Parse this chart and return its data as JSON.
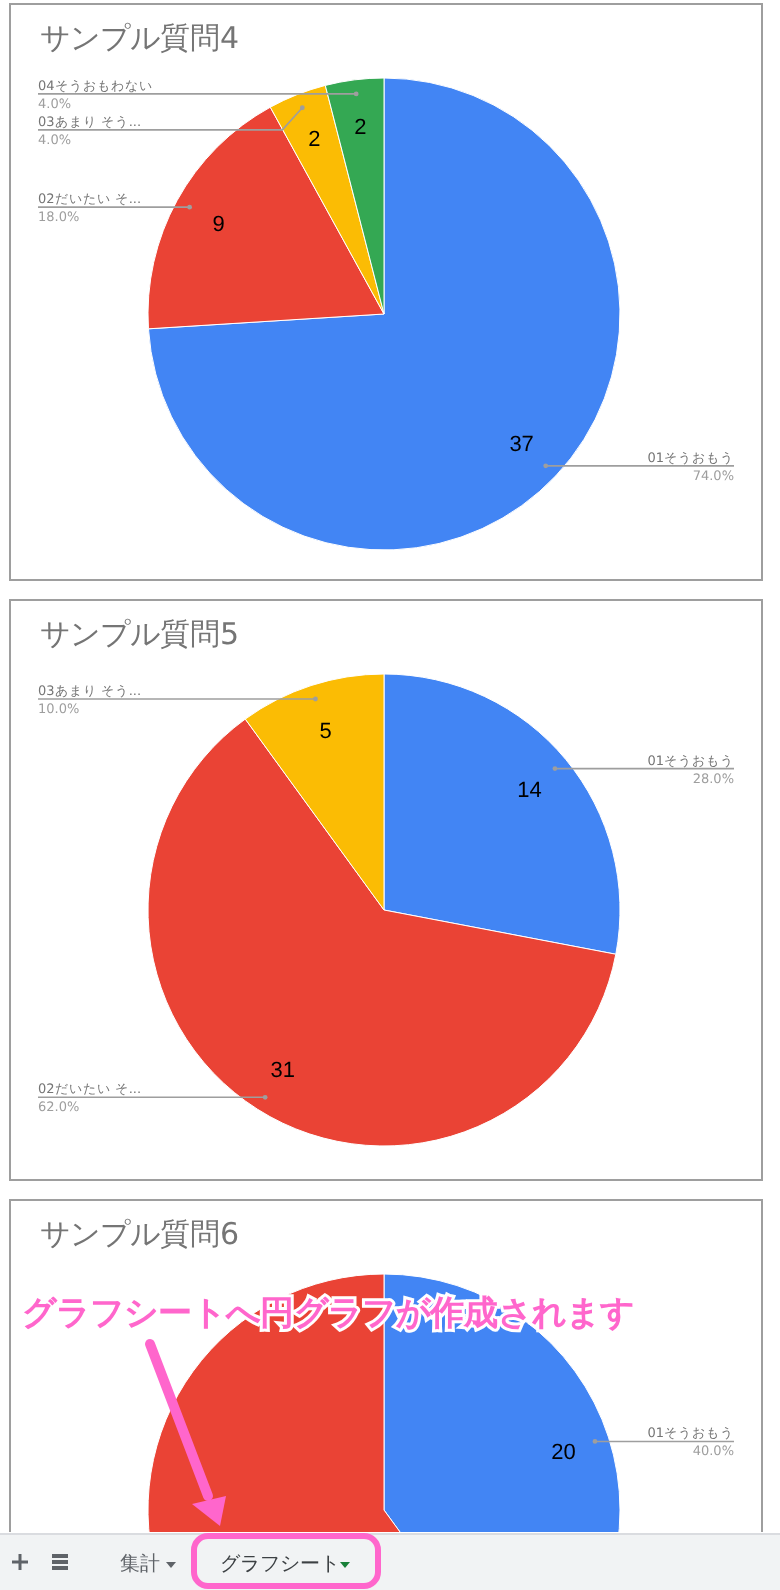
{
  "chart_data": [
    {
      "type": "pie",
      "title": "サンプル質問4",
      "categories": [
        "01そうおもう",
        "02だいたい そ...",
        "03あまり そう...",
        "04そうおもわない"
      ],
      "values": [
        37,
        9,
        2,
        2
      ],
      "colors": [
        "#4285f4",
        "#ea4335",
        "#fbbc04",
        "#34a853"
      ],
      "data_labels": true,
      "annotations": [
        "74.0%",
        "18.0%",
        "4.0%",
        "4.0%"
      ]
    },
    {
      "type": "pie",
      "title": "サンプル質問5",
      "categories": [
        "01そうおもう",
        "02だいたい そ...",
        "03あまり そう..."
      ],
      "values": [
        14,
        31,
        5
      ],
      "colors": [
        "#4285f4",
        "#ea4335",
        "#fbbc04"
      ],
      "data_labels": true,
      "annotations": [
        "28.0%",
        "62.0%",
        "10.0%"
      ]
    },
    {
      "type": "pie",
      "title": "サンプル質問6",
      "categories": [
        "01そうおもう",
        null
      ],
      "values": [
        20,
        30
      ],
      "colors": [
        "#4285f4",
        "#ea4335"
      ],
      "value_labels": [
        "20",
        null
      ],
      "annotations": [
        "40.0%",
        null
      ]
    },
    {
      "type": "other",
      "annotations": [
        "グラフシートへ円グラフが作成されます",
        "集計",
        "グラフシート"
      ]
    }
  ]
}
